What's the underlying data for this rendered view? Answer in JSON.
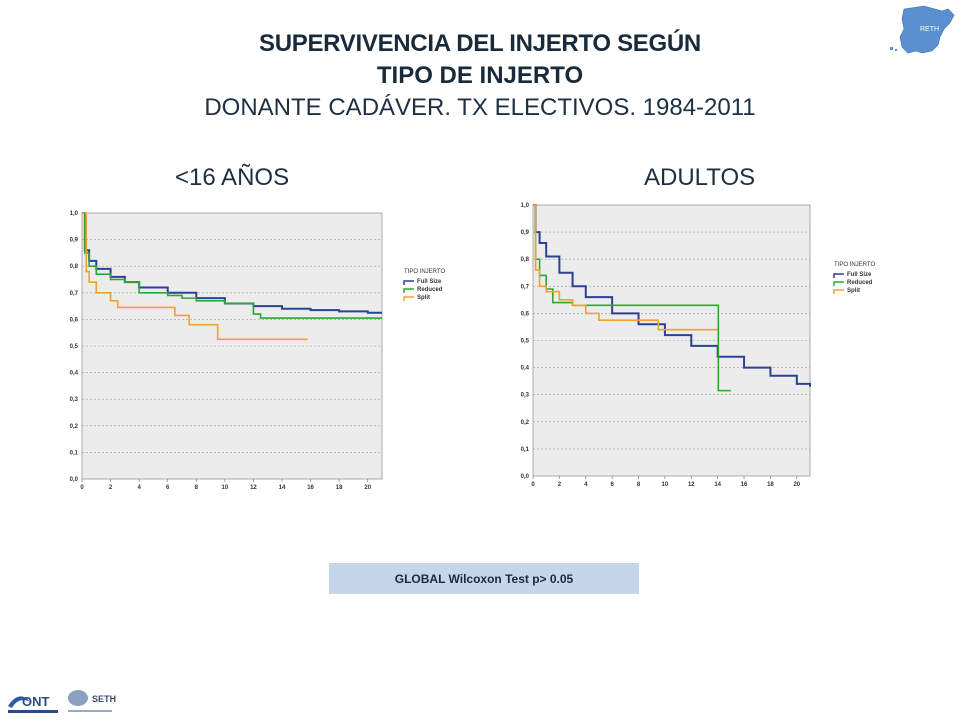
{
  "slide": {
    "title_line1": "SUPERVIVENCIA DEL INJERTO SEGÚN",
    "title_line2": "TIPO DE INJERTO",
    "title_line3": "DONANTE CADÁVER. TX ELECTIVOS. 1984-2011",
    "subtitle_left": "<16 AÑOS",
    "subtitle_right": "ADULTOS",
    "test_label": "GLOBAL Wilcoxon Test  p> 0.05",
    "map_label": "RETH",
    "ont_label": "ONT",
    "seth_label": "SETH"
  },
  "colors": {
    "full_size": "#2e3f96",
    "reduced": "#2aa832",
    "split": "#f0a030",
    "plot_bg": "#ececec",
    "map": "#5a8fd0"
  },
  "chart_data": [
    {
      "type": "line",
      "subplot": "<16 AÑOS",
      "legend_title": "TIPO INJERTO",
      "legend_position": "right",
      "xlim": [
        0,
        21
      ],
      "ylim": [
        0,
        1
      ],
      "x_ticks": [
        "0",
        "2",
        "4",
        "6",
        "8",
        "10",
        "12",
        "14",
        "16",
        "18",
        "20"
      ],
      "y_ticks": [
        "0,0",
        "0,1",
        "0,2",
        "0,3",
        "0,4",
        "0,5",
        "0,6",
        "0,7",
        "0,8",
        "0,9",
        "1,0"
      ],
      "grid": "horizontal dashed",
      "series": [
        {
          "name": "Full Size",
          "color": "#2e3f96",
          "x": [
            0,
            0.2,
            0.5,
            1,
            2,
            3,
            4,
            6,
            8,
            10,
            12,
            14,
            16,
            18,
            20,
            21
          ],
          "y": [
            1,
            0.86,
            0.82,
            0.79,
            0.76,
            0.74,
            0.72,
            0.7,
            0.68,
            0.66,
            0.65,
            0.64,
            0.635,
            0.63,
            0.625,
            0.625
          ]
        },
        {
          "name": "Reduced",
          "color": "#2aa832",
          "x": [
            0,
            0.2,
            0.5,
            1,
            2,
            3,
            4,
            6,
            7,
            8,
            10,
            11,
            12,
            12.5,
            16,
            21
          ],
          "y": [
            1,
            0.85,
            0.8,
            0.77,
            0.75,
            0.74,
            0.7,
            0.69,
            0.68,
            0.67,
            0.66,
            0.66,
            0.62,
            0.605,
            0.605,
            0.605
          ]
        },
        {
          "name": "Split",
          "color": "#f0a030",
          "x": [
            0,
            0.3,
            0.5,
            1,
            2,
            2.5,
            6,
            6.5,
            7.5,
            9.5,
            15.8
          ],
          "y": [
            1,
            0.78,
            0.74,
            0.7,
            0.67,
            0.645,
            0.645,
            0.615,
            0.58,
            0.525,
            0.525
          ]
        }
      ]
    },
    {
      "type": "line",
      "subplot": "ADULTOS",
      "legend_title": "TIPO INJERTO",
      "legend_position": "right",
      "xlim": [
        0,
        21
      ],
      "ylim": [
        0,
        1
      ],
      "x_ticks": [
        "0",
        "2",
        "4",
        "6",
        "8",
        "10",
        "12",
        "14",
        "16",
        "18",
        "20"
      ],
      "y_ticks": [
        "0,0",
        "0,1",
        "0,2",
        "0,3",
        "0,4",
        "0,5",
        "0,6",
        "0,7",
        "0,8",
        "0,9",
        "1,0"
      ],
      "grid": "horizontal dashed",
      "series": [
        {
          "name": "Full Size",
          "color": "#2e3f96",
          "x": [
            0,
            0.2,
            0.5,
            1,
            2,
            3,
            4,
            6,
            8,
            10,
            12,
            14,
            16,
            18,
            20,
            21
          ],
          "y": [
            1,
            0.9,
            0.86,
            0.81,
            0.75,
            0.7,
            0.66,
            0.6,
            0.56,
            0.52,
            0.48,
            0.44,
            0.4,
            0.37,
            0.34,
            0.33
          ]
        },
        {
          "name": "Reduced",
          "color": "#2aa832",
          "x": [
            0,
            0.2,
            0.5,
            1,
            1.5,
            3,
            14,
            14.05,
            15
          ],
          "y": [
            1,
            0.8,
            0.74,
            0.69,
            0.64,
            0.63,
            0.63,
            0.315,
            0.315
          ]
        },
        {
          "name": "Split",
          "color": "#f0a030",
          "x": [
            0,
            0.2,
            0.5,
            1,
            2,
            3,
            4,
            5,
            9,
            9.5,
            14
          ],
          "y": [
            1,
            0.76,
            0.7,
            0.68,
            0.65,
            0.63,
            0.6,
            0.575,
            0.575,
            0.54,
            0.54
          ]
        }
      ]
    }
  ]
}
